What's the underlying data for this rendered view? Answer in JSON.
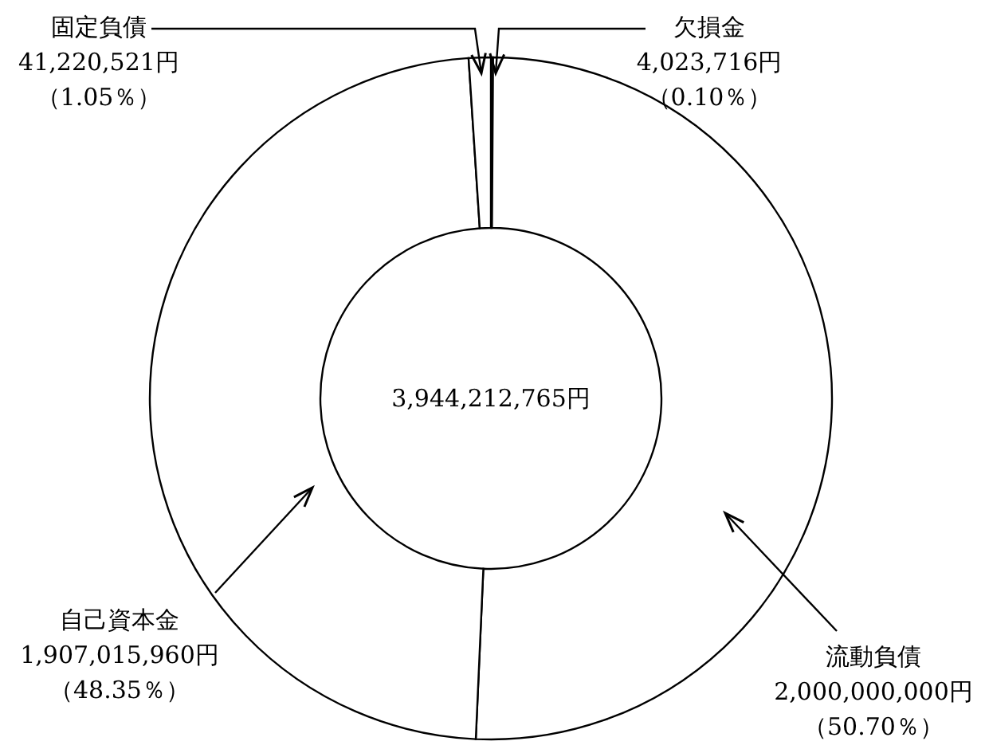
{
  "chart_data": {
    "type": "donut",
    "categories": [
      "欠損金",
      "流動負債",
      "自己資本金",
      "固定負債"
    ],
    "values": [
      4023716,
      2000000000,
      1907015960,
      41220521
    ],
    "colors": [
      "#ffffff",
      "#ffffff",
      "#ffffff",
      "#ffffff"
    ],
    "value_labels": [
      "4,023,716円（0.10％）",
      "2,000,000,000円（50.70％）",
      "1,907,015,960円（48.35％）",
      "41,220,521円（1.05％）"
    ],
    "annotations": [
      "3,944,212,765円"
    ]
  }
}
